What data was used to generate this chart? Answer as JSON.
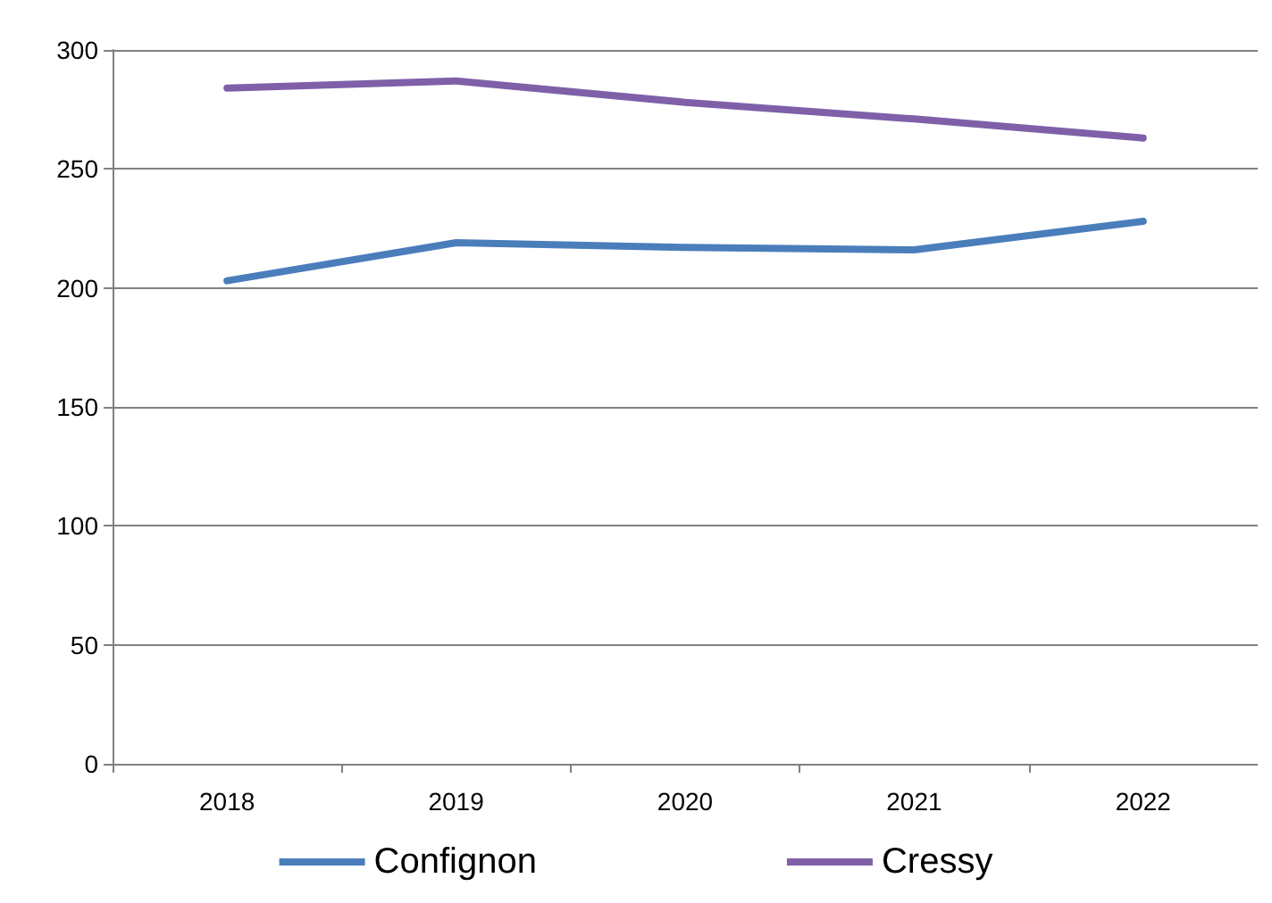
{
  "chart_data": {
    "type": "line",
    "categories": [
      "2018",
      "2019",
      "2020",
      "2021",
      "2022"
    ],
    "series": [
      {
        "name": "Confignon",
        "color": "#4a7ebb",
        "values": [
          203,
          219,
          217,
          216,
          228
        ]
      },
      {
        "name": "Cressy",
        "color": "#7f60a8",
        "values": [
          284,
          287,
          278,
          271,
          263
        ]
      }
    ],
    "ylim": [
      0,
      300
    ],
    "yticks": [
      0,
      50,
      100,
      150,
      200,
      250,
      300
    ],
    "grid": "y",
    "legend": "bottom",
    "marker": "none",
    "line_style": "solid"
  }
}
